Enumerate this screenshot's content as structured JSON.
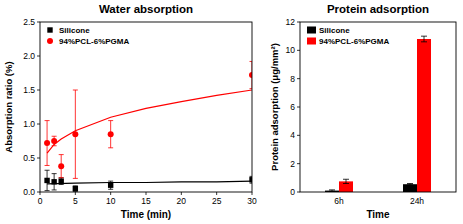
{
  "chart_data": [
    {
      "type": "scatter",
      "title": "Water absorption",
      "x_label": "Time (min)",
      "y_label": "Absorption ratio (%)",
      "x": [
        1,
        2,
        3,
        5,
        10,
        30
      ],
      "xlim": [
        0,
        30
      ],
      "xticks": [
        0,
        5,
        10,
        15,
        20,
        25,
        30
      ],
      "ylim": [
        0,
        2.5
      ],
      "yticks": [
        {
          "value": 0,
          "label": "0.0"
        },
        0.5,
        {
          "value": 1,
          "label": "1.0"
        },
        1.5,
        {
          "value": 2,
          "label": "2.0"
        },
        2.5
      ],
      "legend": "top-left",
      "grid": false,
      "series": [
        {
          "name": "Silicone",
          "color": "#000000",
          "marker": "square",
          "values": [
            0.17,
            0.15,
            0.16,
            0.05,
            0.1,
            0.18
          ],
          "errors": [
            0.15,
            0.12,
            0.05,
            0.04,
            0.06,
            0.05
          ],
          "fit": {
            "x": [
              1,
              5,
              10,
              15,
              20,
              25,
              30
            ],
            "values": [
              0.12,
              0.13,
              0.14,
              0.14,
              0.15,
              0.15,
              0.16
            ]
          }
        },
        {
          "name": "94%PCL-6%PGMA",
          "color": "#ff0000",
          "marker": "circle",
          "values": [
            0.72,
            0.75,
            0.38,
            0.85,
            0.85,
            1.72
          ],
          "errors": [
            0.33,
            0.07,
            0.17,
            0.65,
            0.2,
            0.2
          ],
          "fit": {
            "x": [
              1,
              2,
              3,
              5,
              10,
              15,
              20,
              25,
              30
            ],
            "values": [
              0.57,
              0.7,
              0.78,
              0.9,
              1.1,
              1.23,
              1.33,
              1.42,
              1.5
            ]
          }
        }
      ]
    },
    {
      "type": "bar",
      "title": "Protein adsorption",
      "x_label": "Time",
      "y_label": "Protein adsorption (μg/mm²)",
      "categories": [
        "6h",
        "24h"
      ],
      "ylim": [
        0,
        12
      ],
      "yticks": [
        0,
        2,
        4,
        6,
        8,
        10,
        12
      ],
      "legend": "top-left",
      "grid": false,
      "series": [
        {
          "name": "Silicone",
          "color": "#000000",
          "values": [
            0.1,
            0.55
          ],
          "errors": [
            0.05,
            0.05
          ]
        },
        {
          "name": "94%PCL-6%PGMA",
          "color": "#ff0000",
          "values": [
            0.75,
            10.8
          ],
          "errors": [
            0.15,
            0.2
          ]
        }
      ]
    }
  ]
}
